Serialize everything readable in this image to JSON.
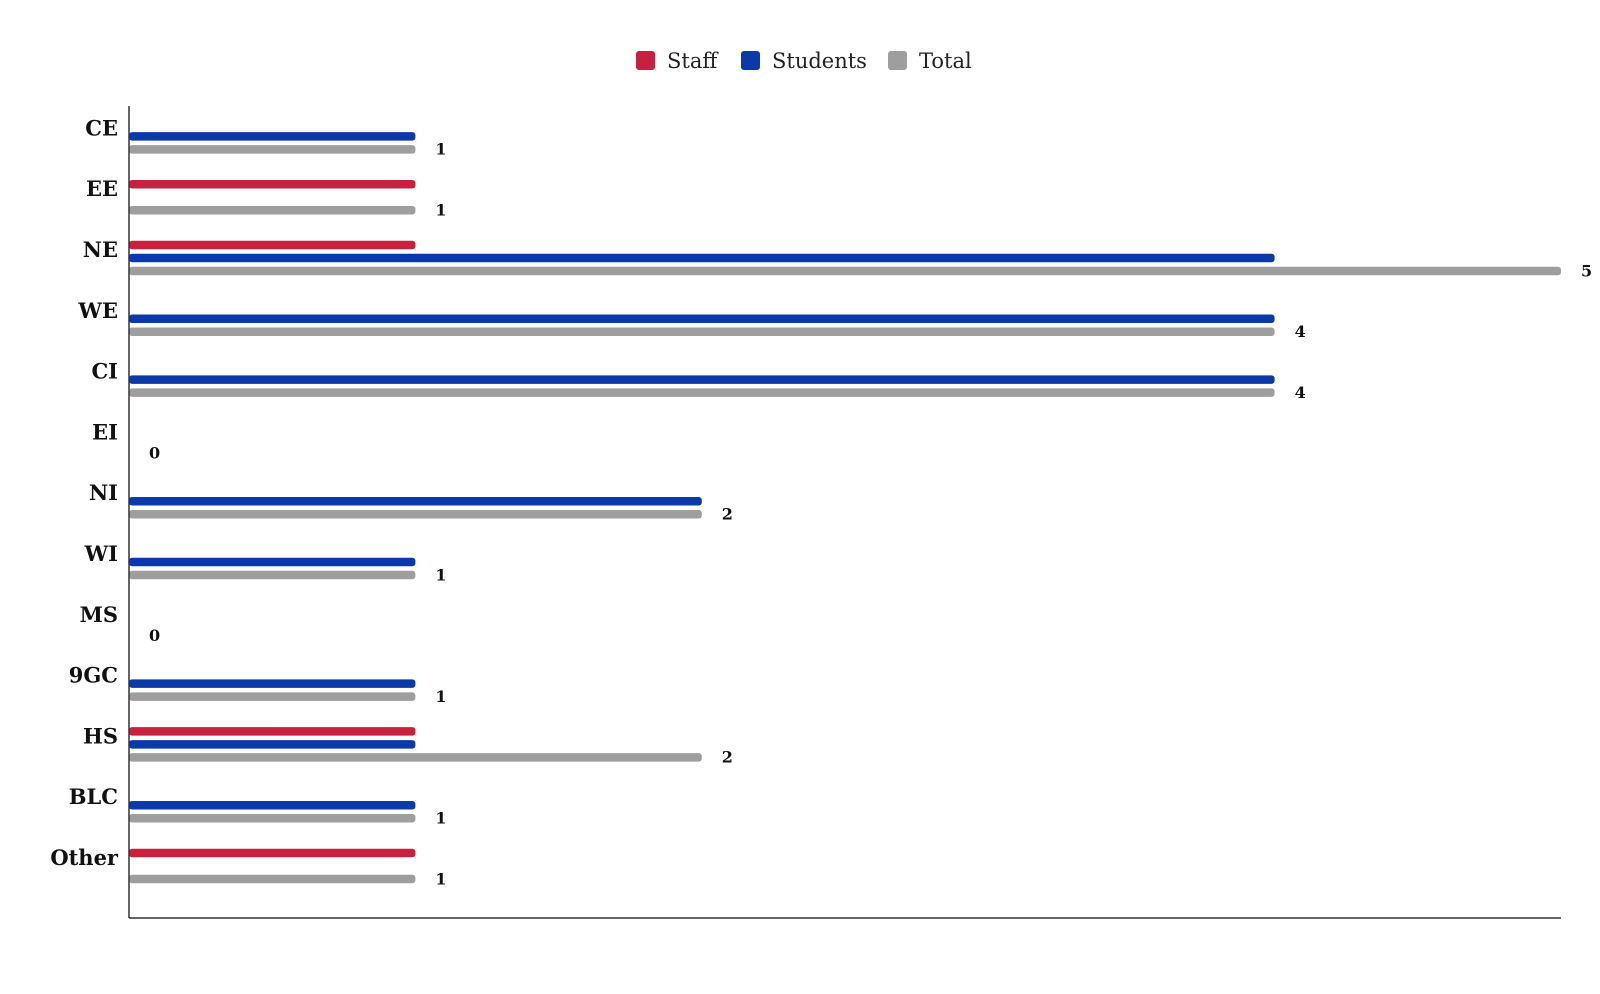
{
  "chart_data": {
    "type": "bar",
    "orientation": "horizontal",
    "title": "",
    "xlabel": "",
    "ylabel": "",
    "xlim": [
      0,
      5
    ],
    "grid": false,
    "legend_position": "top-center",
    "categories": [
      "CE",
      "EE",
      "NE",
      "WE",
      "CI",
      "EI",
      "NI",
      "WI",
      "MS",
      "9GC",
      "HS",
      "BLC",
      "Other"
    ],
    "series": [
      {
        "name": "Staff",
        "color": "#c8203f",
        "values": [
          0,
          1,
          1,
          0,
          0,
          0,
          0,
          0,
          0,
          0,
          1,
          0,
          1
        ]
      },
      {
        "name": "Students",
        "color": "#0b3aa8",
        "values": [
          1,
          0,
          4,
          4,
          4,
          0,
          2,
          1,
          0,
          1,
          1,
          1,
          0
        ]
      },
      {
        "name": "Total",
        "color": "#9e9e9e",
        "values": [
          1,
          1,
          5,
          4,
          4,
          0,
          2,
          1,
          0,
          1,
          2,
          1,
          1
        ]
      }
    ],
    "data_labels": [
      "1",
      "1",
      "5",
      "4",
      "4",
      "0",
      "2",
      "1",
      "0",
      "1",
      "2",
      "1",
      "1"
    ]
  }
}
